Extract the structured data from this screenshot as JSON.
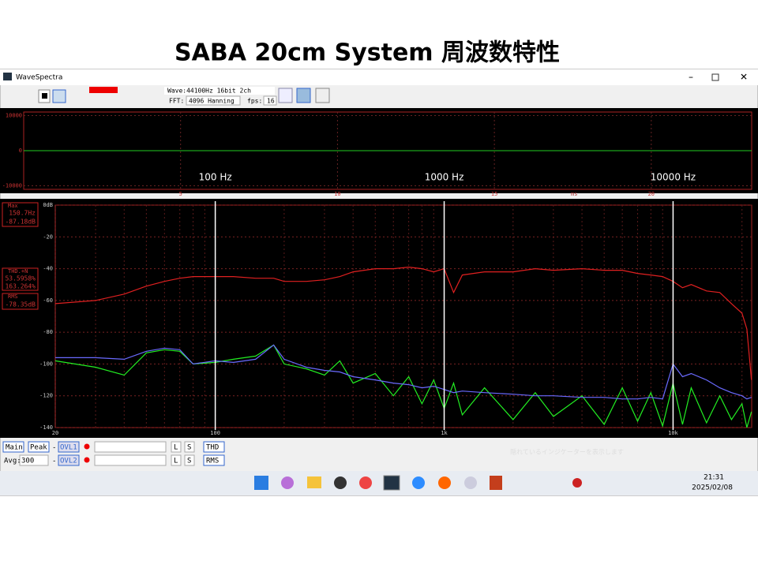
{
  "slide_title": "SABA 20cm System 周波数特性",
  "window": {
    "title": "WaveSpectra",
    "wave_info": "Wave:44100Hz 16bit 2ch",
    "fft_label": "FFT:",
    "fft_value": "4096 Hanning",
    "fps_label": "fps:",
    "fps_value": "16"
  },
  "waveform": {
    "xlim": [
      0,
      23.2
    ],
    "xticks": [
      5,
      10,
      15,
      20
    ],
    "x_unit": "ms",
    "ylim": [
      -11000,
      11000
    ],
    "yticks": [
      10000,
      0,
      -10000
    ]
  },
  "readout": {
    "max_label": "Max",
    "max_freq": "150.7Hz",
    "max_level": "-87.18dB",
    "thd_label": "THD.+N",
    "thd_1": "53.5958%",
    "thd_2": "163.264%",
    "rms_label": "RMS",
    "rms_level": "-78.35dB"
  },
  "controls": {
    "main": "Main",
    "peak": "Peak",
    "dash1": "-",
    "ovl1": "OVL1",
    "l1": "L",
    "s1": "S",
    "thd": "THD",
    "avg_label": "Avg:",
    "avg_value": "300",
    "dash2": "-",
    "ovl2": "OVL2",
    "l2": "L",
    "s2": "S",
    "rms": "RMS",
    "tray_hint": "隠れているインジケーターを表示します"
  },
  "taskbar": {
    "time": "21:31",
    "date": "2025/02/08"
  },
  "chart_data": {
    "type": "line",
    "log_x": true,
    "grid": true,
    "minor_grid": true,
    "xlim": [
      20,
      22050
    ],
    "xticks": [
      20,
      100,
      {
        "value": 1000,
        "label": "1k"
      },
      {
        "value": 10000,
        "label": "10k"
      }
    ],
    "ylim": [
      -140,
      0
    ],
    "yticks": [
      {
        "value": 0,
        "label": "0dB"
      },
      -20,
      -40,
      -60,
      -80,
      -100,
      -120,
      -140
    ],
    "annotations": [
      {
        "text": "100 Hz",
        "x": 100
      },
      {
        "text": "1000 Hz",
        "x": 1000
      },
      {
        "text": "10000 Hz",
        "x": 10000
      }
    ],
    "x": [
      20,
      30,
      40,
      50,
      60,
      70,
      80,
      100,
      120,
      150,
      180,
      200,
      250,
      300,
      350,
      400,
      500,
      600,
      700,
      800,
      900,
      1000,
      1100,
      1200,
      1500,
      2000,
      2500,
      3000,
      4000,
      5000,
      6000,
      7000,
      8000,
      9000,
      10000,
      11000,
      12000,
      14000,
      16000,
      18000,
      20000,
      21000,
      22000
    ],
    "series": [
      {
        "color": "#e02020",
        "values": [
          -62,
          -60,
          -56,
          -51,
          -48,
          -46,
          -45,
          -45,
          -45,
          -46,
          -46,
          -48,
          -48,
          -47,
          -45,
          -42,
          -40,
          -40,
          -39,
          -40,
          -42,
          -40,
          -55,
          -44,
          -42,
          -42,
          -40,
          -41,
          -40,
          -41,
          -41,
          -43,
          -44,
          -45,
          -48,
          -52,
          -50,
          -54,
          -55,
          -62,
          -68,
          -78,
          -110
        ]
      },
      {
        "color": "#6a6aff",
        "values": [
          -96,
          -96,
          -97,
          -92,
          -90,
          -91,
          -100,
          -98,
          -99,
          -97,
          -88,
          -97,
          -102,
          -104,
          -105,
          -108,
          -110,
          -112,
          -113,
          -115,
          -114,
          -116,
          -118,
          -117,
          -118,
          -119,
          -120,
          -120,
          -121,
          -121,
          -122,
          -122,
          -121,
          -122,
          -100,
          -108,
          -106,
          -110,
          -115,
          -118,
          -120,
          -122,
          -121
        ]
      },
      {
        "color": "#22ee22",
        "values": [
          -98,
          -102,
          -107,
          -93,
          -91,
          -92,
          -100,
          -99,
          -97,
          -95,
          -88,
          -100,
          -103,
          -107,
          -98,
          -112,
          -106,
          -120,
          -108,
          -125,
          -110,
          -128,
          -112,
          -132,
          -115,
          -135,
          -118,
          -133,
          -120,
          -138,
          -115,
          -136,
          -118,
          -139,
          -112,
          -138,
          -115,
          -137,
          -120,
          -135,
          -125,
          -140,
          -130
        ]
      }
    ]
  }
}
